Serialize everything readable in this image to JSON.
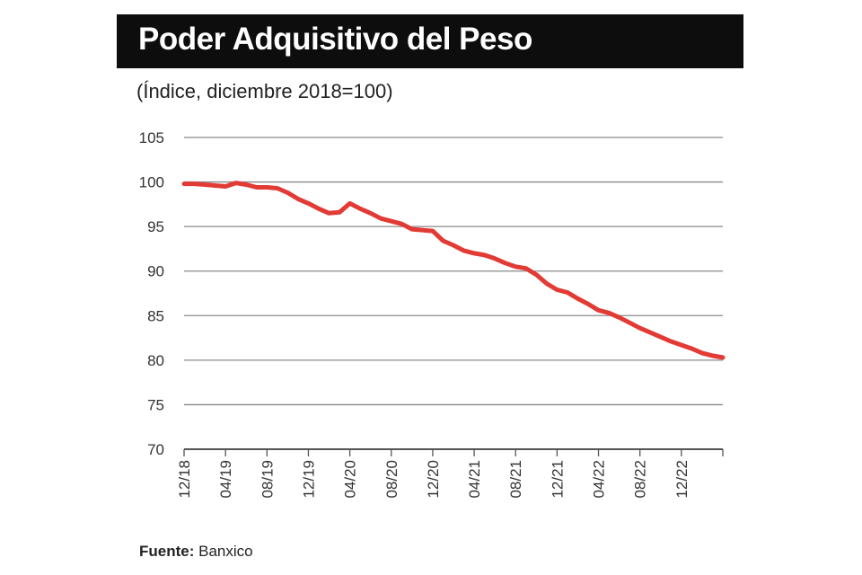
{
  "chart_data": {
    "type": "line",
    "title": "Poder Adquisitivo del Peso",
    "subtitle": "(Índice, diciembre 2018=100)",
    "source_label": "Fuente:",
    "source": "Banxico",
    "xlabel": "",
    "ylabel": "",
    "ylim": [
      70,
      105
    ],
    "yticks": [
      70,
      75,
      80,
      85,
      90,
      95,
      100,
      105
    ],
    "xticks": [
      "12/18",
      "04/19",
      "08/19",
      "12/19",
      "04/20",
      "08/20",
      "12/20",
      "04/21",
      "08/21",
      "12/21",
      "04/22",
      "08/22",
      "12/22"
    ],
    "x_start": "12/18",
    "x_end": "04/23",
    "frequency": "monthly",
    "grid": true,
    "line_color": "#e23b36",
    "series": [
      {
        "values": [
          99.8,
          99.8,
          99.7,
          99.6,
          99.5,
          99.9,
          99.7,
          99.4,
          99.4,
          99.3,
          98.8,
          98.1,
          97.6,
          97.0,
          96.5,
          96.6,
          97.6,
          97.0,
          96.5,
          95.9,
          95.6,
          95.3,
          94.7,
          94.6,
          94.5,
          93.4,
          92.9,
          92.3,
          92.0,
          91.8,
          91.4,
          90.9,
          90.5,
          90.3,
          89.6,
          88.6,
          87.9,
          87.6,
          86.9,
          86.3,
          85.6,
          85.3,
          84.8,
          84.2,
          83.6,
          83.1,
          82.6,
          82.1,
          81.7,
          81.3,
          80.8,
          80.5,
          80.3
        ]
      }
    ]
  }
}
